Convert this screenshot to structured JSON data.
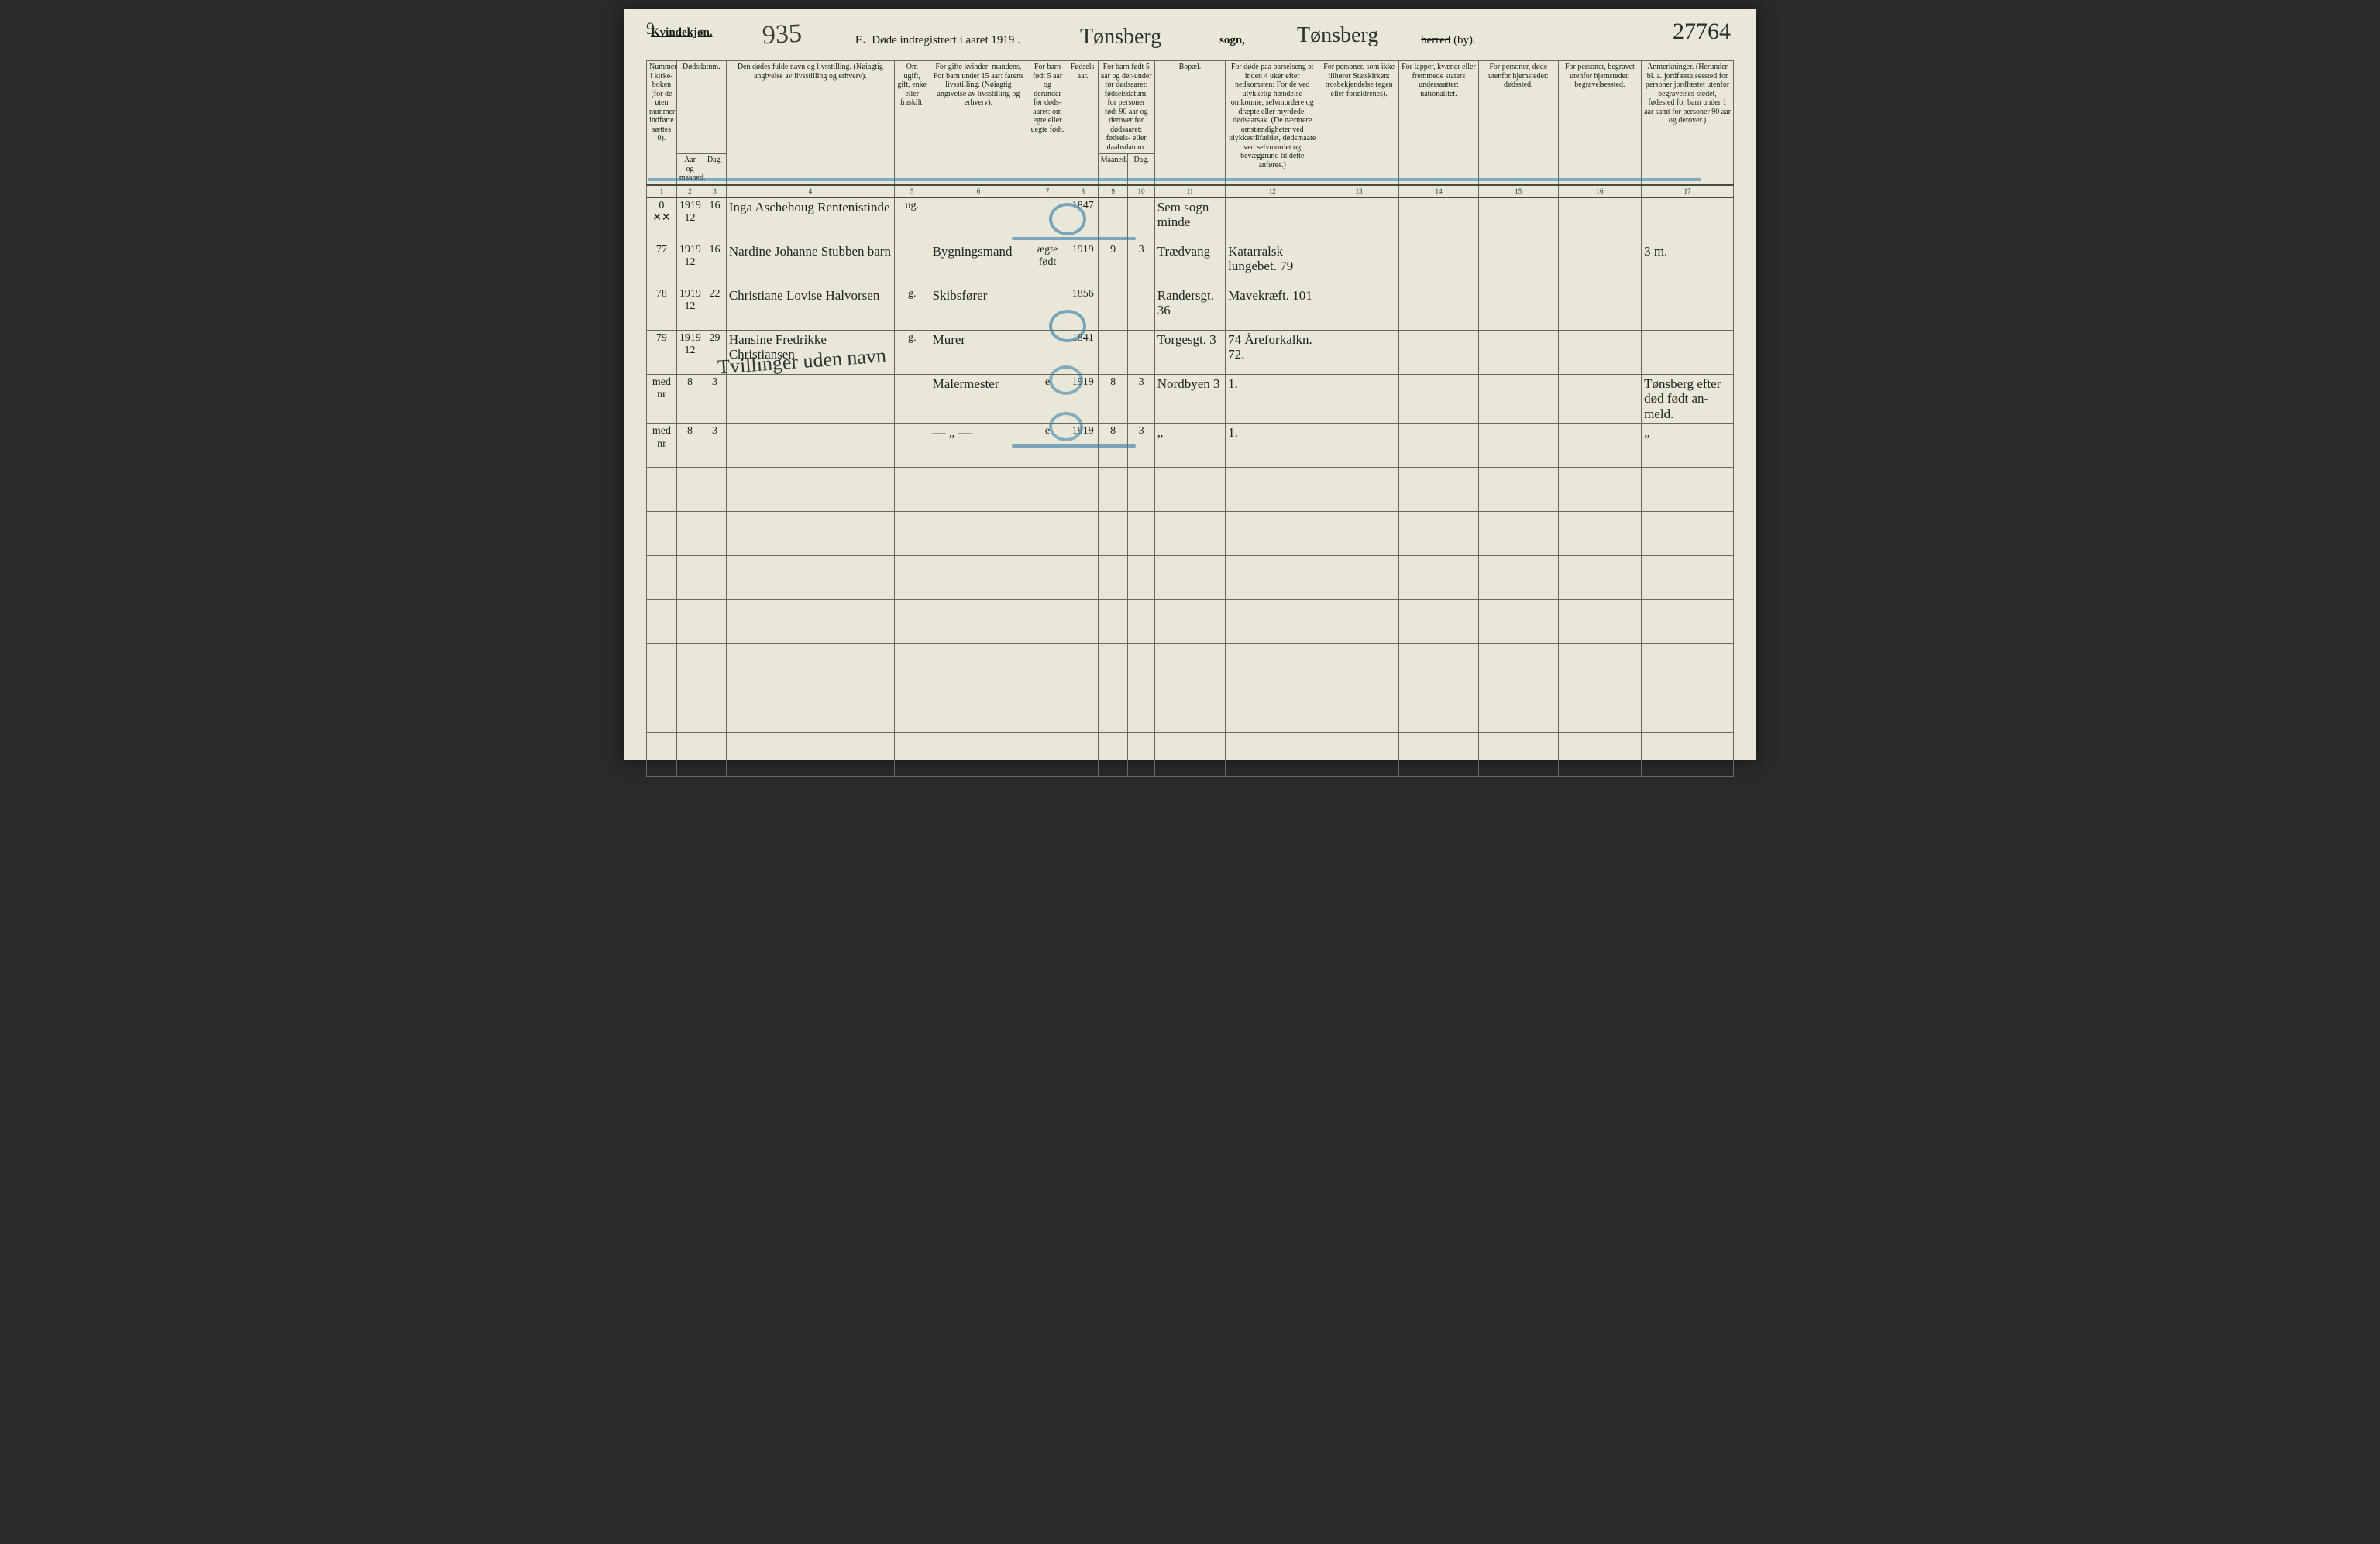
{
  "header": {
    "gender": "Kvindekjøn.",
    "sheet_no": "9.",
    "hand_number": "935",
    "title_prefix": "E.",
    "title_text": "Døde indregistrert i aaret 191",
    "title_year_suffix": "9",
    "parish_script": "Tønsberg",
    "sogn_label": "sogn,",
    "district_script": "Tønsberg",
    "herred_strike": "herred",
    "herred_tail": "(by).",
    "page_number_script": "27764"
  },
  "columns": {
    "c1": "Nummer i kirke-boken (for de uten nummer indførte sættes 0).",
    "c2a": "Dødsdatum.",
    "c2": "Aar og maaned.",
    "c3": "Dag.",
    "c4": "Den dødes fulde navn og livsstilling. (Nøiagtig angivelse av livsstilling og erhverv).",
    "c5": "Om ugift, gift, enke eller fraskilt.",
    "c6": "For gifte kvinder: mandens, For barn under 15 aar: farens livsstilling. (Nøiagtig angivelse av livsstilling og erhverv).",
    "c7": "For barn født 5 aar og derunder før døds-aaret: om egte eller uegte født.",
    "c8": "Fødsels-aar.",
    "c9a": "For barn født 5 aar og der-under før dødsaaret: fødselsdatum; for personer født 90 aar og derover før dødsaaret: fødsels- eller daabsdatum.",
    "c9": "Maaned.",
    "c10": "Dag.",
    "c11": "Bopæl.",
    "c12": "For døde paa barselseng ɔ: inden 4 uker efter nedkomsten: For de ved ulykkelig hændelse omkomne, selvmordere og dræpte eller myrdede: dødsaarsak. (De nærmere omstændigheter ved ulykkestilfældet, dødsmaate ved selvmordet og bevæggrund til dette anføres.)",
    "c13": "For personer, som ikke tilhører Statskirken: trosbekjendelse (egen eller forældrenes).",
    "c14": "For lapper, kvæner eller fremmede staters undersaatter: nationalitet.",
    "c15": "For personer, døde utenfor hjemstedet: dødssted.",
    "c16": "For personer, begravet utenfor hjemstedet: begravelsessted.",
    "c17": "Anmerkninger. (Herunder bl. a. jordfæstelsessted for personer jordfæstet utenfor begravelses-stedet, fødested for barn under 1 aar samt for personer 90 aar og derover.)"
  },
  "colnums": [
    "1",
    "2",
    "3",
    "4",
    "5",
    "6",
    "7",
    "8",
    "9",
    "10",
    "11",
    "12",
    "13",
    "14",
    "15",
    "16",
    "17"
  ],
  "rows": [
    {
      "n": "0 ✕✕",
      "ym": "1919 12",
      "d": "16",
      "name": "Inga Aschehoug  Rentenistinde",
      "ms": "ug.",
      "rel": "",
      "leg": "",
      "fy": "1847",
      "fm": "",
      "fd": "",
      "res": "Sem sogn minde",
      "cause": "",
      "conf": "",
      "nat": "",
      "dpl": "",
      "bpl": "",
      "rem": ""
    },
    {
      "n": "77",
      "ym": "1919 12",
      "d": "16",
      "name": "Nardine Johanne Stubben  barn",
      "ms": "",
      "rel": "Bygningsmand",
      "leg": "ægte født",
      "fy": "1919",
      "fm": "9",
      "fd": "3",
      "res": "Trædvang",
      "cause": "Katarralsk lungebet.    79",
      "conf": "",
      "nat": "",
      "dpl": "",
      "bpl": "",
      "rem": "3 m."
    },
    {
      "n": "78",
      "ym": "1919 12",
      "d": "22",
      "name": "Christiane Lovise Halvorsen",
      "ms": "g.",
      "rel": "Skibsfører",
      "leg": "",
      "fy": "1856",
      "fm": "",
      "fd": "",
      "res": "Randersgt. 36",
      "cause": "Mavekræft.   101",
      "conf": "",
      "nat": "",
      "dpl": "",
      "bpl": "",
      "rem": ""
    },
    {
      "n": "79",
      "ym": "1919 12",
      "d": "29",
      "name": "Hansine Fredrikke Christiansen",
      "ms": "g.",
      "rel": "Murer",
      "leg": "",
      "fy": "1841",
      "fm": "",
      "fd": "",
      "res": "Torgesgt. 3",
      "cause": "74  Åreforkalkn. 72.",
      "conf": "",
      "nat": "",
      "dpl": "",
      "bpl": "",
      "rem": ""
    },
    {
      "n": "med nr",
      "ym": "8",
      "d": "3",
      "name": "",
      "ms": "",
      "rel": "Malermester",
      "leg": "e",
      "fy": "1919",
      "fm": "8",
      "fd": "3",
      "res": "Nordbyen 3",
      "cause": "1.",
      "conf": "",
      "nat": "",
      "dpl": "",
      "bpl": "",
      "rem": "Tønsberg  efter død født an-meld."
    },
    {
      "n": "med nr",
      "ym": "8",
      "d": "3",
      "name": "",
      "ms": "",
      "rel": "— „ —",
      "leg": "e",
      "fy": "1919",
      "fm": "8",
      "fd": "3",
      "res": "„",
      "cause": "1.",
      "conf": "",
      "nat": "",
      "dpl": "",
      "bpl": "",
      "rem": "„"
    }
  ],
  "overlay": {
    "twins": "Tvillinger\nuden navn"
  },
  "style": {
    "paper": "#e9e7d8",
    "ink": "#1a1a1a",
    "rule": "#6a6a5a",
    "script": "#2f2f2f",
    "blue": "#2d7aa8"
  }
}
